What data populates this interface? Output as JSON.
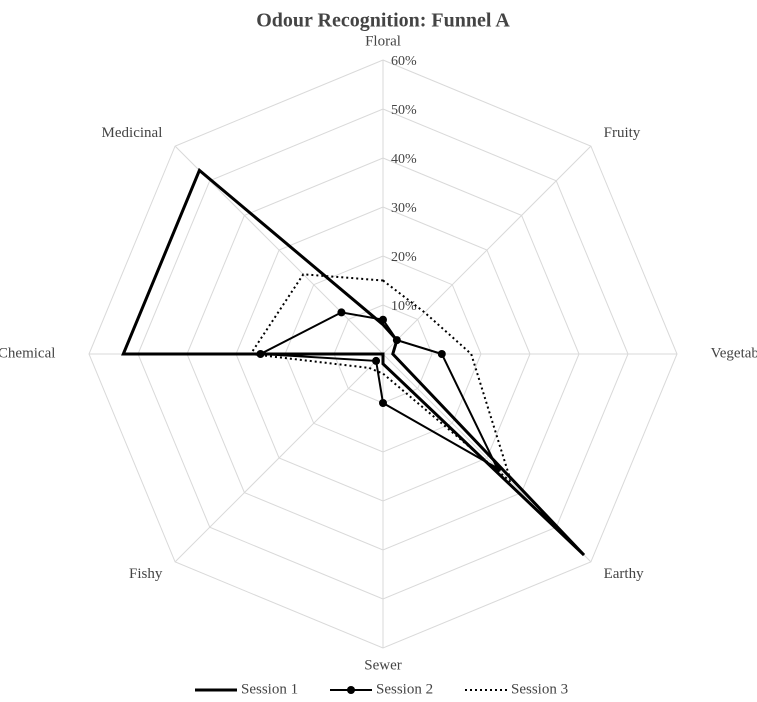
{
  "chart_data": {
    "type": "radar",
    "title": "Odour Recognition: Funnel A",
    "categories": [
      "Floral",
      "Fruity",
      "Vegetable",
      "Earthy",
      "Sewer",
      "Fishy",
      "Chemical",
      "Medicinal"
    ],
    "rlim": [
      0,
      60
    ],
    "rticks": [
      {
        "value": 10,
        "label": "10%"
      },
      {
        "value": 20,
        "label": "20%"
      },
      {
        "value": 30,
        "label": "30%"
      },
      {
        "value": 40,
        "label": "40%"
      },
      {
        "value": 50,
        "label": "50%"
      },
      {
        "value": 60,
        "label": "60%"
      }
    ],
    "grid": true,
    "legend": "bottom",
    "series": [
      {
        "name": "Session 1",
        "color": "#000000",
        "line_style": "solid",
        "marker": false,
        "values": [
          6,
          4,
          2,
          58,
          2,
          0,
          53,
          53
        ]
      },
      {
        "name": "Session 2",
        "color": "#000000",
        "line_style": "solid",
        "marker": true,
        "values": [
          7,
          4,
          12,
          33,
          10,
          2,
          25,
          12
        ]
      },
      {
        "name": "Session 3",
        "color": "#000000",
        "line_style": "dotted",
        "marker": false,
        "values": [
          15,
          12,
          18,
          37,
          4,
          4,
          27,
          23
        ]
      }
    ]
  }
}
